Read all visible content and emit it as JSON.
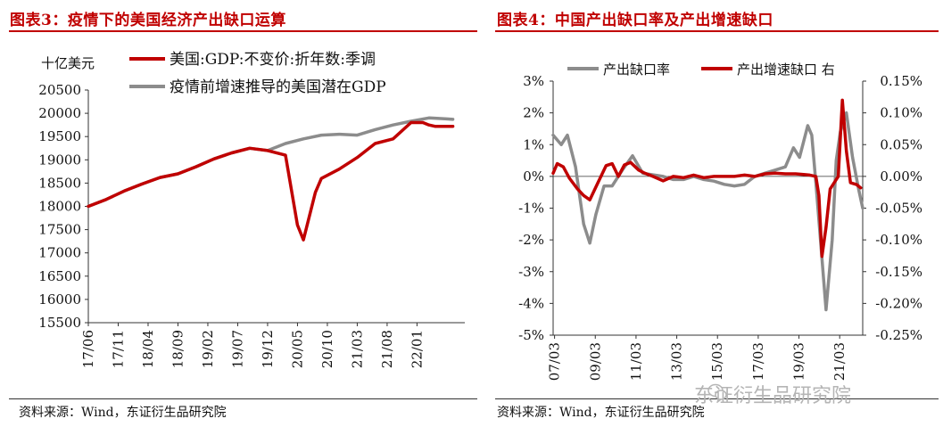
{
  "left_figure": {
    "title": "图表3：疫情下的美国经济产出缺口运算",
    "source": "资料来源：Wind，东证衍生品研究院"
  },
  "right_figure": {
    "title": "图表4：中国产出缺口率及产出增速缺口",
    "source": "资料来源：Wind，东证衍生品研究院"
  },
  "watermark": "东证衍生品研究院",
  "colors": {
    "red": "#c00000",
    "gray": "#8c8c8c",
    "title_red": "#c00000"
  },
  "chart_data": [
    {
      "type": "line",
      "title": "图表3：疫情下的美国经济产出缺口运算",
      "ylabel": "十亿美元",
      "ylim": [
        15500,
        20500
      ],
      "yticks": [
        15500,
        16000,
        16500,
        17000,
        17500,
        18000,
        18500,
        19000,
        19500,
        20000,
        20500
      ],
      "xlim": [
        0,
        63
      ],
      "x_tick_positions": [
        0,
        5,
        10,
        15,
        20,
        25,
        30,
        35,
        40,
        45,
        50,
        55
      ],
      "x_tick_labels": [
        "17/06",
        "17/11",
        "18/04",
        "18/09",
        "19/02",
        "19/07",
        "19/12",
        "20/05",
        "20/10",
        "21/03",
        "21/08",
        "22/01"
      ],
      "legend": "top-left",
      "series": [
        {
          "name": "美国:GDP:不变价:折年数:季调",
          "color": "#c00000",
          "x": [
            0,
            3,
            6,
            9,
            12,
            15,
            18,
            21,
            24,
            27,
            30,
            33,
            35,
            36,
            38,
            39,
            42,
            45,
            48,
            51,
            54,
            56,
            57,
            58,
            60,
            61
          ],
          "y": [
            18000,
            18150,
            18330,
            18480,
            18620,
            18700,
            18850,
            19020,
            19150,
            19250,
            19200,
            19100,
            17600,
            17280,
            18300,
            18600,
            18800,
            19050,
            19350,
            19450,
            19800,
            19800,
            19750,
            19720,
            19720,
            19720
          ]
        },
        {
          "name": "疫情前增速推导的美国潜在GDP",
          "color": "#8c8c8c",
          "x": [
            0,
            3,
            6,
            9,
            12,
            15,
            18,
            21,
            24,
            27,
            30,
            33,
            36,
            39,
            42,
            45,
            48,
            51,
            54,
            57,
            60,
            61
          ],
          "y": [
            18000,
            18150,
            18330,
            18480,
            18620,
            18700,
            18850,
            19020,
            19150,
            19250,
            19200,
            19350,
            19450,
            19530,
            19550,
            19530,
            19650,
            19750,
            19830,
            19900,
            19880,
            19870
          ]
        }
      ]
    },
    {
      "type": "line",
      "title": "图表4：中国产出缺口率及产出增速缺口",
      "y_left_ticks": [
        "-5%",
        "-4%",
        "-3%",
        "-2%",
        "-1%",
        "0%",
        "1%",
        "2%",
        "3%"
      ],
      "ylim_left": [
        -5,
        3
      ],
      "y_right_ticks": [
        "-0.25%",
        "-0.20%",
        "-0.15%",
        "-0.10%",
        "-0.05%",
        "0.00%",
        "0.05%",
        "0.10%",
        "0.15%"
      ],
      "ylim_right": [
        -0.25,
        0.15
      ],
      "xlim": [
        2007.1,
        2022.3
      ],
      "x_tick_values": [
        2007.17,
        2009.17,
        2011.17,
        2013.17,
        2015.17,
        2017.17,
        2019.17,
        2021.17
      ],
      "x_tick_labels": [
        "07/03",
        "09/03",
        "11/03",
        "13/03",
        "15/03",
        "17/03",
        "19/03",
        "21/03"
      ],
      "legend": "top",
      "series": [
        {
          "name": "产出缺口率",
          "axis": "left",
          "color": "#8c8c8c",
          "x": [
            2007.1,
            2007.5,
            2007.8,
            2008.2,
            2008.6,
            2008.9,
            2009.2,
            2009.6,
            2010.0,
            2010.5,
            2011.0,
            2011.5,
            2012.0,
            2012.5,
            2013.0,
            2013.5,
            2014.0,
            2014.5,
            2015.0,
            2015.5,
            2016.0,
            2016.5,
            2017.0,
            2017.5,
            2018.0,
            2018.5,
            2018.9,
            2019.2,
            2019.6,
            2019.8,
            2020.0,
            2020.2,
            2020.5,
            2020.8,
            2021.0,
            2021.2,
            2021.5,
            2021.8,
            2022.1,
            2022.3
          ],
          "y": [
            1.3,
            1.0,
            1.3,
            0.3,
            -1.5,
            -2.1,
            -1.2,
            -0.3,
            -0.3,
            0.2,
            0.65,
            0.1,
            0.05,
            0.0,
            -0.1,
            -0.1,
            0.0,
            -0.1,
            -0.15,
            -0.25,
            -0.3,
            -0.25,
            0.0,
            0.1,
            0.2,
            0.3,
            0.9,
            0.6,
            1.6,
            1.3,
            -0.2,
            -1.8,
            -4.2,
            -2.0,
            0.5,
            1.4,
            2.0,
            0.6,
            -0.4,
            -1.0
          ]
        },
        {
          "name": "产出增速缺口 右",
          "axis": "right",
          "color": "#c00000",
          "x": [
            2007.1,
            2007.3,
            2007.6,
            2007.9,
            2008.3,
            2008.6,
            2008.9,
            2009.3,
            2009.7,
            2010.0,
            2010.3,
            2010.6,
            2010.9,
            2011.3,
            2011.6,
            2012.0,
            2012.5,
            2013.0,
            2013.5,
            2014.0,
            2014.5,
            2015.0,
            2015.5,
            2016.0,
            2016.5,
            2017.0,
            2017.5,
            2018.0,
            2018.5,
            2019.0,
            2019.4,
            2019.7,
            2020.0,
            2020.15,
            2020.3,
            2020.5,
            2020.7,
            2020.9,
            2021.1,
            2021.3,
            2021.5,
            2021.7,
            2022.0,
            2022.2
          ],
          "y": [
            0.005,
            0.02,
            0.015,
            -0.003,
            -0.02,
            -0.03,
            -0.037,
            -0.01,
            0.017,
            0.02,
            0.0,
            0.018,
            0.022,
            0.01,
            0.005,
            0.0,
            -0.007,
            0.0,
            -0.002,
            0.002,
            -0.002,
            0.0,
            0.0,
            0.0,
            0.002,
            0.0,
            0.004,
            0.005,
            0.004,
            0.004,
            0.003,
            0.002,
            0.0,
            -0.03,
            -0.126,
            -0.08,
            -0.02,
            -0.01,
            0.0,
            0.12,
            0.04,
            -0.01,
            -0.013,
            -0.018
          ]
        }
      ]
    }
  ]
}
